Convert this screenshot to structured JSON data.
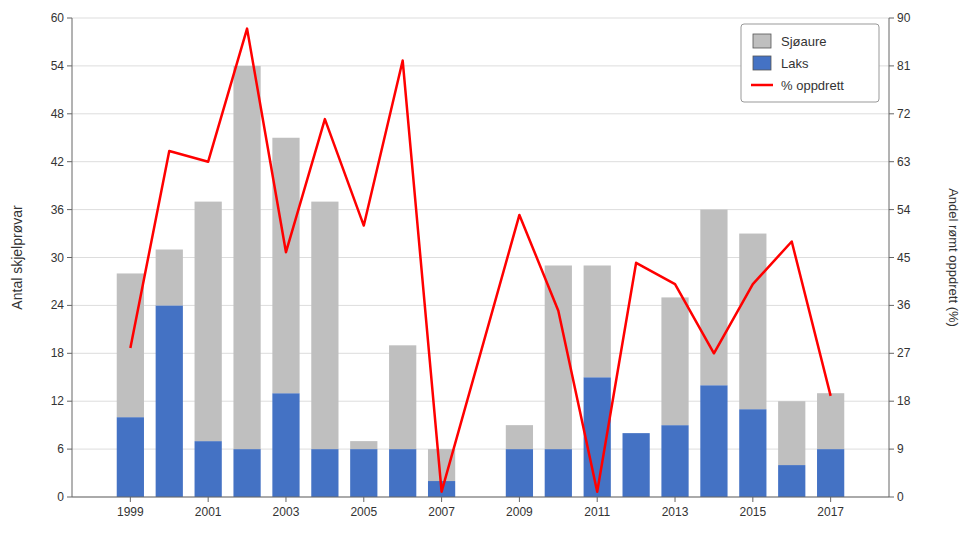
{
  "chart_data": {
    "type": "bar",
    "stacked": true,
    "x": [
      1999,
      2000,
      2001,
      2002,
      2003,
      2004,
      2005,
      2006,
      2007,
      2009,
      2010,
      2011,
      2012,
      2013,
      2014,
      2015,
      2016,
      2017
    ],
    "xlim": [
      1997.5,
      2018.5
    ],
    "xticks": [
      1999,
      2001,
      2003,
      2005,
      2007,
      2009,
      2011,
      2013,
      2015,
      2017
    ],
    "ylim": [
      0,
      60
    ],
    "yticks": [
      0,
      6,
      12,
      18,
      24,
      30,
      36,
      42,
      48,
      54,
      60
    ],
    "y2lim": [
      0,
      90
    ],
    "y2ticks": [
      0,
      9,
      18,
      27,
      36,
      45,
      54,
      63,
      72,
      81,
      90
    ],
    "ylabel": "Antal skjelprøvar",
    "y2label": "Andel rømt oppdrett (%)",
    "grid": true,
    "legend": "upper right",
    "series": [
      {
        "name": "Laks",
        "color": "#4472C4",
        "values": [
          10,
          24,
          7,
          6,
          13,
          6,
          6,
          6,
          2,
          6,
          6,
          15,
          8,
          9,
          14,
          11,
          4,
          6
        ]
      },
      {
        "name": "Sjøaure",
        "color": "#BFBFBF",
        "values": [
          18,
          7,
          30,
          48,
          32,
          31,
          1,
          13,
          4,
          3,
          23,
          14,
          0,
          16,
          22,
          22,
          8,
          7
        ]
      },
      {
        "name": "% oppdrett",
        "type": "line",
        "axis": "y2",
        "color": "#FF0000",
        "values": [
          28,
          65,
          63,
          88,
          46,
          71,
          51,
          82,
          1,
          53,
          35,
          1,
          44,
          40,
          27,
          40,
          48,
          19
        ]
      }
    ]
  }
}
